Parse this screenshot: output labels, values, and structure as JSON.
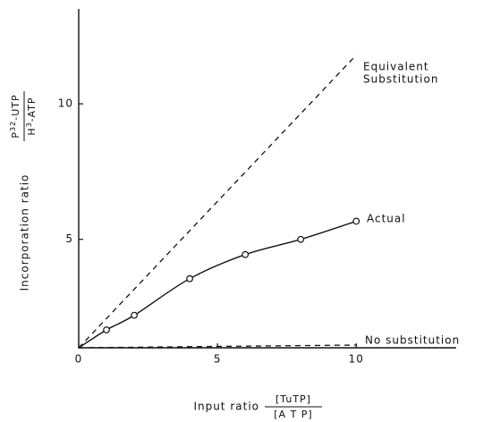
{
  "chart_data": {
    "type": "line",
    "x_label": "Input ratio",
    "x_label_fraction": {
      "numerator": "[TuTP]",
      "denominator": "[A T P]"
    },
    "y_label": "Incorporation ratio",
    "y_label_fraction": {
      "numerator": [
        "P",
        "32",
        "-UTP"
      ],
      "denominator": [
        "H",
        "3",
        "-ATP"
      ]
    },
    "xlim": [
      0,
      13.6
    ],
    "ylim": [
      1,
      13.5
    ],
    "xticks": [
      0,
      5,
      10
    ],
    "yticks": [
      5,
      10
    ],
    "series": [
      {
        "label": [
          "Equivalent",
          "Substitution"
        ],
        "style": "dashed",
        "color": "#111",
        "x": [
          0,
          10
        ],
        "values": [
          1,
          11.8
        ]
      },
      {
        "label": [
          "No substitution"
        ],
        "style": "dashed",
        "color": "#111",
        "x": [
          0,
          10
        ],
        "values": [
          1,
          1.1
        ]
      },
      {
        "label": [
          "Actual"
        ],
        "style": "smooth",
        "color": "#111",
        "x": [
          0,
          1,
          2,
          4,
          6,
          8,
          10
        ],
        "values": [
          1,
          1.66,
          2.2,
          3.55,
          4.44,
          5.0,
          5.67
        ]
      },
      {
        "style": "markers",
        "color": "#111",
        "x": [
          1,
          2,
          4,
          6,
          8,
          10
        ],
        "values": [
          1.66,
          2.2,
          3.55,
          4.44,
          5.0,
          5.67
        ]
      }
    ]
  }
}
